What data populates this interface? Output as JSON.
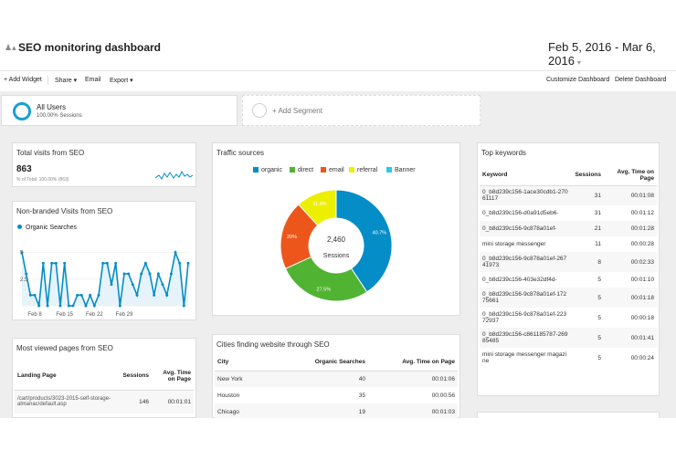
{
  "header": {
    "title": "SEO monitoring dashboard",
    "date_range": "Feb 5, 2016 - Mar 6, 2016",
    "person_icon": "person-icon"
  },
  "toolbar": {
    "add_widget": "+ Add Widget",
    "share": "Share ▾",
    "email": "Email",
    "export": "Export ▾",
    "customize": "Customize Dashboard",
    "delete": "Delete Dashboard"
  },
  "segments": {
    "all_users": "All Users",
    "all_users_sub": "100.00% Sessions",
    "add_segment": "+ Add Segment"
  },
  "total_visits": {
    "title": "Total visits from SEO",
    "value": "863",
    "sub": "% of Total: 100.00% (863)"
  },
  "nonbranded": {
    "title": "Non-branded Visits from SEO",
    "legend": "Organic Searches",
    "y_ticks": [
      "5",
      "2.5"
    ],
    "x_ticks": [
      "Feb 8",
      "Feb 15",
      "Feb 22",
      "Feb 29"
    ]
  },
  "traffic": {
    "title": "Traffic sources",
    "center_value": "2,460",
    "center_label": "Sessions",
    "legend": [
      "organic",
      "direct",
      "email",
      "referral",
      "Banner"
    ]
  },
  "most_viewed": {
    "title": "Most viewed pages from SEO",
    "headers": [
      "Landing Page",
      "Sessions",
      "Avg. Time on Page"
    ],
    "rows": [
      [
        "/cart/products/3023-2015-self-storage-almanac/default.asp",
        "146",
        "00:01:01"
      ]
    ]
  },
  "cities": {
    "title": "Cities finding website through SEO",
    "headers": [
      "City",
      "Organic Searches",
      "Avg. Time on Page"
    ],
    "rows": [
      [
        "New York",
        "40",
        "00:01:06"
      ],
      [
        "Houston",
        "35",
        "00:00:56"
      ],
      [
        "Chicago",
        "19",
        "00:01:03"
      ]
    ]
  },
  "keywords": {
    "title": "Top keywords",
    "headers": [
      "Keyword",
      "Sessions",
      "Avg. Time on Page"
    ],
    "rows": [
      [
        "0_b8d239c156-1ace30cdb1-27061117",
        "31",
        "00:01:08"
      ],
      [
        "0_b8d239c156-d0a91d5eb6-",
        "31",
        "00:01:12"
      ],
      [
        "0_b8d239c156-9c878a01ef-",
        "21",
        "00:01:28"
      ],
      [
        "mini storage messenger",
        "11",
        "00:00:28"
      ],
      [
        "0_b8d239c156-9c878a01ef-26741973",
        "8",
        "00:02:33"
      ],
      [
        "0_b8d239c156-403e32df4d-",
        "5",
        "00:01:10"
      ],
      [
        "0_b8d239c156-9c878a01ef-17275661",
        "5",
        "00:01:18"
      ],
      [
        "0_b8d239c156-9c878a01ef-22372937",
        "5",
        "00:00:18"
      ],
      [
        "0_b8d239c156-c861185787-26985485",
        "5",
        "00:01:41"
      ],
      [
        "mini storage messenger magazine",
        "5",
        "00:00:24"
      ]
    ]
  },
  "chart_data": [
    {
      "type": "pie",
      "title": "Traffic sources",
      "categories": [
        "organic",
        "direct",
        "email",
        "referral",
        "Banner"
      ],
      "values": [
        40.7,
        27.5,
        20.0,
        11.8,
        0
      ],
      "data_labels": [
        "40.7%",
        "27.5%",
        "20%",
        "11.8%",
        ""
      ],
      "colors": [
        "#058dc7",
        "#50b432",
        "#ed561b",
        "#edef00",
        "#24cbe5"
      ]
    },
    {
      "type": "line",
      "title": "Non-branded Visits from SEO",
      "series": [
        {
          "name": "Organic Searches",
          "values": [
            5,
            3,
            1,
            1,
            0,
            4,
            0,
            4,
            4,
            0,
            4,
            0,
            0,
            1,
            1,
            0,
            1,
            0,
            1,
            4,
            4,
            2,
            4,
            0,
            3,
            3,
            2,
            1,
            3,
            4,
            3,
            1,
            3,
            2,
            1,
            3,
            5,
            4,
            0,
            4
          ]
        }
      ],
      "ylim": [
        0,
        6
      ],
      "x_ticks": [
        "Feb 8",
        "Feb 15",
        "Feb 22",
        "Feb 29"
      ],
      "color": "#058dc7"
    }
  ]
}
